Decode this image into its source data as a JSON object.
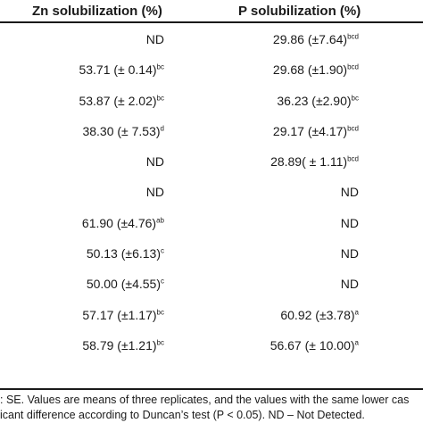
{
  "table": {
    "headers": {
      "zn": "Zn solubilization (%)",
      "p": "P solubilization (%)"
    },
    "rows": [
      {
        "zn": {
          "value": "ND",
          "sup": ""
        },
        "p": {
          "value": "29.86  (±7.64)",
          "sup": "bcd"
        }
      },
      {
        "zn": {
          "value": "53.71  (± 0.14)",
          "sup": "bc"
        },
        "p": {
          "value": "29.68  (±1.90)",
          "sup": "bcd"
        }
      },
      {
        "zn": {
          "value": "53.87  (± 2.02)",
          "sup": "bc"
        },
        "p": {
          "value": "36.23  (±2.90)",
          "sup": "bc"
        }
      },
      {
        "zn": {
          "value": "38.30  (± 7.53)",
          "sup": "d"
        },
        "p": {
          "value": "29.17  (±4.17)",
          "sup": "bcd"
        }
      },
      {
        "zn": {
          "value": "ND",
          "sup": ""
        },
        "p": {
          "value": "28.89( ± 1.11)",
          "sup": "bcd"
        }
      },
      {
        "zn": {
          "value": "ND",
          "sup": ""
        },
        "p": {
          "value": "ND",
          "sup": ""
        }
      },
      {
        "zn": {
          "value": "61.90  (±4.76)",
          "sup": "ab"
        },
        "p": {
          "value": "ND",
          "sup": ""
        }
      },
      {
        "zn": {
          "value": "50.13  (±6.13)",
          "sup": "c"
        },
        "p": {
          "value": "ND",
          "sup": ""
        }
      },
      {
        "zn": {
          "value": "50.00  (±4.55)",
          "sup": "c"
        },
        "p": {
          "value": "ND",
          "sup": ""
        }
      },
      {
        "zn": {
          "value": "57.17  (±1.17)",
          "sup": "bc"
        },
        "p": {
          "value": "60.92  (±3.78)",
          "sup": "a"
        }
      },
      {
        "zn": {
          "value": "58.79  (±1.21)",
          "sup": "bc"
        },
        "p": {
          "value": "56.67  (± 10.00)",
          "sup": "a"
        }
      }
    ]
  },
  "footnote": {
    "line1": ": SE. Values are means of three replicates, and the values with the same lower cas",
    "line2": "icant difference according to Duncan’s test (P < 0.05). ND – Not Detected."
  }
}
